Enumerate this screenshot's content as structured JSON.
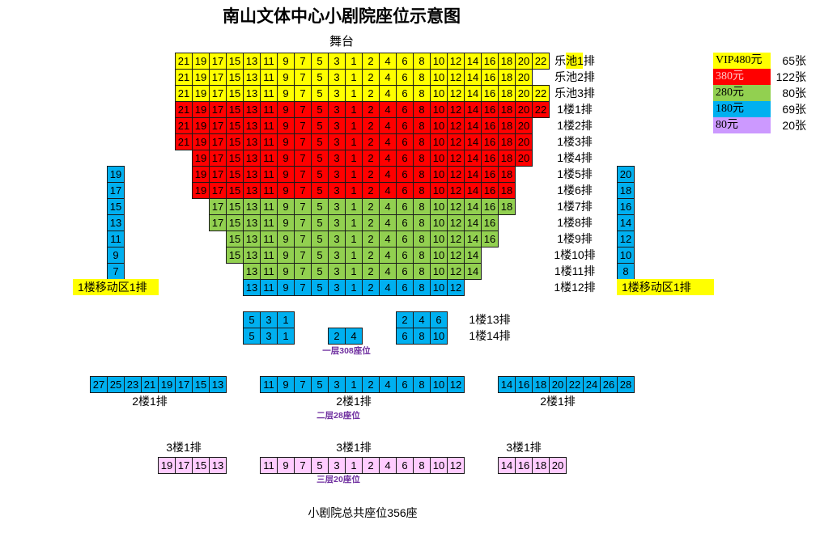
{
  "title": "南山文体中心小剧院座位示意图",
  "stage": "舞台",
  "legend": [
    {
      "price": "VIP480元",
      "count": "65张",
      "color": "#ffff00"
    },
    {
      "price": "380元",
      "count": "122张",
      "color": "#ff0000"
    },
    {
      "price": "280元",
      "count": "80张",
      "color": "#92d050"
    },
    {
      "price": "180元",
      "count": "69张",
      "color": "#00b0f0"
    },
    {
      "price": "80元",
      "count": "20张",
      "color": "#cc99ff"
    }
  ],
  "floor1": {
    "rows": [
      {
        "label": "乐池1排",
        "color": "#ffff00",
        "seats": [
          21,
          19,
          17,
          15,
          13,
          11,
          9,
          7,
          5,
          3,
          1,
          2,
          4,
          6,
          8,
          10,
          12,
          14,
          16,
          18,
          20,
          22
        ]
      },
      {
        "label": "乐池2排",
        "color": "#ffff00",
        "seats": [
          21,
          19,
          17,
          15,
          13,
          11,
          9,
          7,
          5,
          3,
          1,
          2,
          4,
          6,
          8,
          10,
          12,
          14,
          16,
          18,
          20
        ]
      },
      {
        "label": "乐池3排",
        "color": "#ffff00",
        "seats": [
          21,
          19,
          17,
          15,
          13,
          11,
          9,
          7,
          5,
          3,
          1,
          2,
          4,
          6,
          8,
          10,
          12,
          14,
          16,
          18,
          20,
          22
        ]
      },
      {
        "label": "1楼1排",
        "color": "#ff0000",
        "seats": [
          21,
          19,
          17,
          15,
          13,
          11,
          9,
          7,
          5,
          3,
          1,
          2,
          4,
          6,
          8,
          10,
          12,
          14,
          16,
          18,
          20,
          22
        ]
      },
      {
        "label": "1楼2排",
        "color": "#ff0000",
        "seats": [
          21,
          19,
          17,
          15,
          13,
          11,
          9,
          7,
          5,
          3,
          1,
          2,
          4,
          6,
          8,
          10,
          12,
          14,
          16,
          18,
          20
        ]
      },
      {
        "label": "1楼3排",
        "color": "#ff0000",
        "seats": [
          21,
          19,
          17,
          15,
          13,
          11,
          9,
          7,
          5,
          3,
          1,
          2,
          4,
          6,
          8,
          10,
          12,
          14,
          16,
          18,
          20
        ]
      },
      {
        "label": "1楼4排",
        "color": "#ff0000",
        "seats": [
          19,
          17,
          15,
          13,
          11,
          9,
          7,
          5,
          3,
          1,
          2,
          4,
          6,
          8,
          10,
          12,
          14,
          16,
          18,
          20
        ]
      },
      {
        "label": "1楼5排",
        "color": "#ff0000",
        "seats": [
          19,
          17,
          15,
          13,
          11,
          9,
          7,
          5,
          3,
          1,
          2,
          4,
          6,
          8,
          10,
          12,
          14,
          16,
          18
        ]
      },
      {
        "label": "1楼6排",
        "color": "#ff0000",
        "seats": [
          19,
          17,
          15,
          13,
          11,
          9,
          7,
          5,
          3,
          1,
          2,
          4,
          6,
          8,
          10,
          12,
          14,
          16,
          18
        ]
      },
      {
        "label": "1楼7排",
        "color": "#92d050",
        "seats": [
          17,
          15,
          13,
          11,
          9,
          7,
          5,
          3,
          1,
          2,
          4,
          6,
          8,
          10,
          12,
          14,
          16,
          18
        ]
      },
      {
        "label": "1楼8排",
        "color": "#92d050",
        "seats": [
          17,
          15,
          13,
          11,
          9,
          7,
          5,
          3,
          1,
          2,
          4,
          6,
          8,
          10,
          12,
          14,
          16
        ]
      },
      {
        "label": "1楼9排",
        "color": "#92d050",
        "seats": [
          15,
          13,
          11,
          9,
          7,
          5,
          3,
          1,
          2,
          4,
          6,
          8,
          10,
          12,
          14,
          16
        ]
      },
      {
        "label": "1楼10排",
        "color": "#92d050",
        "seats": [
          15,
          13,
          11,
          9,
          7,
          5,
          3,
          1,
          2,
          4,
          6,
          8,
          10,
          12,
          14
        ]
      },
      {
        "label": "1楼11排",
        "color": "#92d050",
        "seats": [
          13,
          11,
          9,
          7,
          5,
          3,
          1,
          2,
          4,
          6,
          8,
          10,
          12,
          14
        ]
      },
      {
        "label": "1楼12排",
        "color": "#00b0f0",
        "seats": [
          13,
          11,
          9,
          7,
          5,
          3,
          1,
          2,
          4,
          6,
          8,
          10,
          12
        ]
      }
    ],
    "side_left": {
      "color": "#00b0f0",
      "seats": [
        19,
        17,
        15,
        13,
        11,
        9,
        7
      ]
    },
    "side_right": {
      "color": "#00b0f0",
      "seats": [
        20,
        18,
        16,
        14,
        12,
        10,
        8
      ]
    },
    "mobile_zone": {
      "left": "1楼移动区1排",
      "right": "1楼移动区1排",
      "color": "#ffff00"
    },
    "rear_rows": [
      {
        "label": "1楼13排",
        "color": "#00b0f0",
        "blocks": [
          [
            5,
            3,
            1
          ],
          [
            2,
            4,
            6
          ]
        ]
      },
      {
        "label": "1楼14排",
        "color": "#00b0f0",
        "blocks": [
          [
            5,
            3,
            1
          ],
          [
            2,
            4
          ],
          [
            6,
            8,
            10
          ]
        ]
      }
    ],
    "summary": "一层308座位"
  },
  "floor2": {
    "color": "#00b0f0",
    "blocks": [
      {
        "label": "2楼1排",
        "seats": [
          27,
          25,
          23,
          21,
          19,
          17,
          15,
          13
        ]
      },
      {
        "label": "2楼1排",
        "seats": [
          11,
          9,
          7,
          5,
          3,
          1,
          2,
          4,
          6,
          8,
          10,
          12
        ]
      },
      {
        "label": "2楼1排",
        "seats": [
          14,
          16,
          18,
          20,
          22,
          24,
          26,
          28
        ]
      }
    ],
    "summary": "二层28座位"
  },
  "floor3": {
    "color": "#ffccff",
    "blocks": [
      {
        "label": "3楼1排",
        "seats": [
          19,
          17,
          15,
          13
        ]
      },
      {
        "label": "3楼1排",
        "seats": [
          11,
          9,
          7,
          5,
          3,
          1,
          2,
          4,
          6,
          8,
          10,
          12
        ]
      },
      {
        "label": "3楼1排",
        "seats": [
          14,
          16,
          18,
          20
        ]
      }
    ],
    "summary": "三层20座位"
  },
  "total": "小剧院总共座位356座"
}
